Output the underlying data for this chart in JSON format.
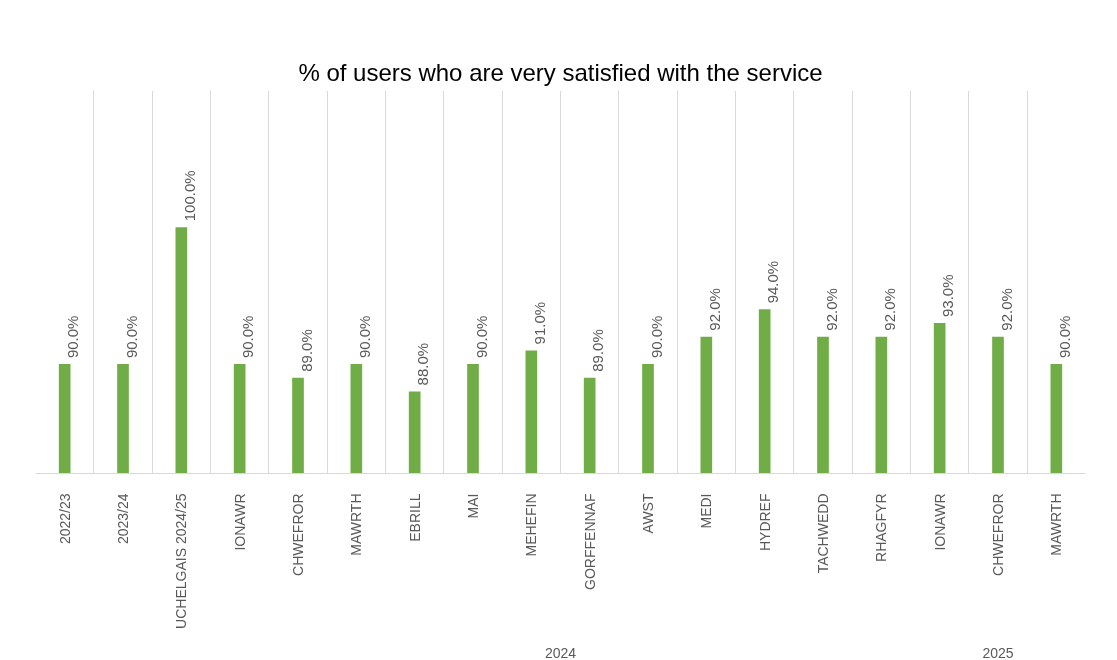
{
  "chart_data": {
    "type": "bar",
    "title": "% of users who are very satisfied with the service",
    "categories": [
      "2022/23",
      "2023/24",
      "UCHELGAIS 2024/25",
      "IONAWR",
      "CHWEFROR",
      "MAWRTH",
      "EBRILL",
      "MAI",
      "MEHEFIN",
      "GORFFENNAF",
      "AWST",
      "MEDI",
      "HYDREF",
      "TACHWEDD",
      "RHAGFYR",
      "IONAWR",
      "CHWEFROR",
      "MAWRTH"
    ],
    "values": [
      90.0,
      90.0,
      100.0,
      90.0,
      89.0,
      90.0,
      88.0,
      90.0,
      91.0,
      89.0,
      90.0,
      92.0,
      94.0,
      92.0,
      92.0,
      93.0,
      92.0,
      90.0
    ],
    "value_labels": [
      "90.0%",
      "90.0%",
      "100.0%",
      "90.0%",
      "89.0%",
      "90.0%",
      "88.0%",
      "90.0%",
      "91.0%",
      "89.0%",
      "90.0%",
      "92.0%",
      "94.0%",
      "92.0%",
      "92.0%",
      "93.0%",
      "92.0%",
      "90.0%"
    ],
    "color": "#70ad47",
    "ylim": [
      82,
      110
    ],
    "tick_labels": "x",
    "grid": "x",
    "annotations": [
      "2024",
      "2025"
    ]
  }
}
